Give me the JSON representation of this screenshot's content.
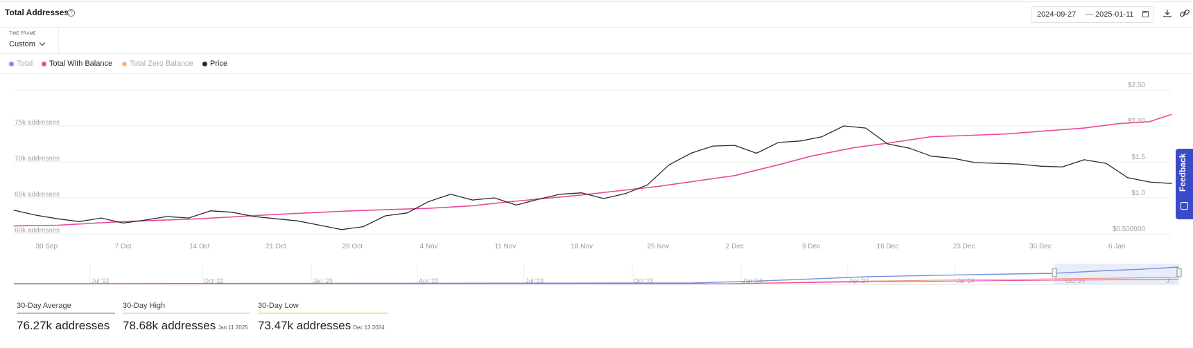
{
  "header": {
    "title": "Total Addresses",
    "help_icon": "?",
    "date_from": "2024-09-27",
    "date_sep": "—",
    "date_to": "2025-01-11"
  },
  "timeframe": {
    "label": "TIME FRAME",
    "value": "Custom"
  },
  "legend": [
    {
      "label": "Total",
      "color": "#7b8fe0",
      "active": false
    },
    {
      "label": "Total With Balance",
      "color": "#e94a9b",
      "active": true
    },
    {
      "label": "Total Zero Balance",
      "color": "#f5b48c",
      "active": false
    },
    {
      "label": "Price",
      "color": "#2b2b2b",
      "active": true
    }
  ],
  "feedback_label": "Feedback",
  "chart_data": {
    "type": "line",
    "x_tick_labels": [
      "30 Sep",
      "7 Oct",
      "14 Oct",
      "21 Oct",
      "28 Oct",
      "4 Nov",
      "11 Nov",
      "18 Nov",
      "25 Nov",
      "2 Dec",
      "9 Dec",
      "16 Dec",
      "23 Dec",
      "30 Dec",
      "6 Jan"
    ],
    "y_left_tick_labels": [
      "60k addresses",
      "65k addresses",
      "70k addresses",
      "75k addresses"
    ],
    "y_left_ticks": [
      60000,
      65000,
      70000,
      75000
    ],
    "y_right_tick_labels": [
      "$0.500000",
      "$1.0",
      "$1.5",
      "$2.00",
      "$2.50"
    ],
    "y_right_ticks": [
      0.5,
      1.0,
      1.5,
      2.0,
      2.5
    ],
    "ylim_left": [
      60000,
      80000
    ],
    "ylim_right": [
      0.5,
      2.5
    ],
    "grid": true,
    "legend_position": "top-left",
    "series": [
      {
        "name": "Total With Balance",
        "axis": "left",
        "color": "#e94a9b",
        "x": [
          "2024-09-27",
          "2024-10-01",
          "2024-10-07",
          "2024-10-14",
          "2024-10-21",
          "2024-10-28",
          "2024-11-01",
          "2024-11-04",
          "2024-11-08",
          "2024-11-11",
          "2024-11-18",
          "2024-11-25",
          "2024-12-02",
          "2024-12-06",
          "2024-12-09",
          "2024-12-13",
          "2024-12-16",
          "2024-12-20",
          "2024-12-23",
          "2024-12-27",
          "2024-12-30",
          "2025-01-03",
          "2025-01-06",
          "2025-01-09",
          "2025-01-11"
        ],
        "values": [
          61100,
          61200,
          61700,
          62100,
          62700,
          63200,
          63400,
          63550,
          63900,
          64400,
          65400,
          66600,
          68100,
          69600,
          70800,
          72000,
          72600,
          73500,
          73650,
          73900,
          74250,
          74700,
          75300,
          75600,
          76600
        ]
      },
      {
        "name": "Price",
        "axis": "right",
        "color": "#2b2b2b",
        "x": [
          "2024-09-27",
          "2024-09-29",
          "2024-10-01",
          "2024-10-03",
          "2024-10-05",
          "2024-10-07",
          "2024-10-09",
          "2024-10-11",
          "2024-10-13",
          "2024-10-15",
          "2024-10-17",
          "2024-10-19",
          "2024-10-21",
          "2024-10-23",
          "2024-10-25",
          "2024-10-27",
          "2024-10-29",
          "2024-10-31",
          "2024-11-02",
          "2024-11-04",
          "2024-11-06",
          "2024-11-08",
          "2024-11-10",
          "2024-11-12",
          "2024-11-14",
          "2024-11-16",
          "2024-11-18",
          "2024-11-20",
          "2024-11-22",
          "2024-11-24",
          "2024-11-26",
          "2024-11-28",
          "2024-11-30",
          "2024-12-02",
          "2024-12-04",
          "2024-12-06",
          "2024-12-08",
          "2024-12-10",
          "2024-12-12",
          "2024-12-14",
          "2024-12-16",
          "2024-12-18",
          "2024-12-20",
          "2024-12-22",
          "2024-12-24",
          "2024-12-26",
          "2024-12-28",
          "2024-12-30",
          "2025-01-01",
          "2025-01-03",
          "2025-01-05",
          "2025-01-07",
          "2025-01-09",
          "2025-01-11"
        ],
        "values": [
          0.83,
          0.76,
          0.71,
          0.67,
          0.72,
          0.65,
          0.69,
          0.74,
          0.72,
          0.82,
          0.8,
          0.74,
          0.71,
          0.68,
          0.62,
          0.56,
          0.6,
          0.75,
          0.79,
          0.95,
          1.05,
          0.97,
          1.0,
          0.9,
          0.98,
          1.05,
          1.07,
          0.99,
          1.06,
          1.18,
          1.46,
          1.62,
          1.72,
          1.73,
          1.62,
          1.77,
          1.79,
          1.85,
          2.0,
          1.97,
          1.75,
          1.69,
          1.58,
          1.55,
          1.49,
          1.48,
          1.47,
          1.44,
          1.43,
          1.53,
          1.48,
          1.28,
          1.22,
          1.2
        ]
      }
    ]
  },
  "navigator": {
    "labels": [
      "Jul '22",
      "Oct '22",
      "Jan '23",
      "Apr '23",
      "Jul '23",
      "Oct '23",
      "Jan '24",
      "Apr '24",
      "Jul '24",
      "Oct '24",
      "J..."
    ]
  },
  "stats": [
    {
      "label": "30-Day Average",
      "value": "76.27k addresses",
      "date": "",
      "color": "#2c3e8f"
    },
    {
      "label": "30-Day High",
      "value": "78.68k addresses",
      "date": "Jan 11 2025",
      "color": "#8bc34a"
    },
    {
      "label": "30-Day Low",
      "value": "73.47k addresses",
      "date": "Dec 13 2024",
      "color": "#f0a020"
    }
  ]
}
